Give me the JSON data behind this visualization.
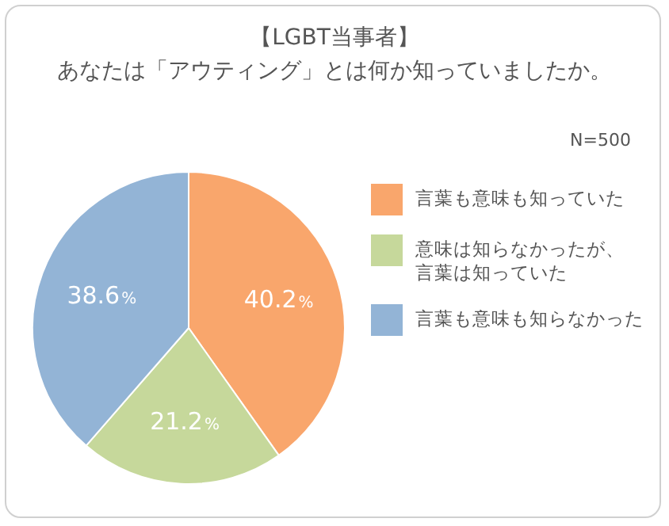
{
  "chart_data": {
    "type": "pie",
    "title": "【LGBT当事者】",
    "subtitle": "あなたは「アウティング」とは何か知っていましたか。",
    "categories": [
      "言葉も意味も知っていた",
      "意味は知らなかったが、言葉は知っていた",
      "言葉も意味も知らなかった"
    ],
    "values": [
      40.2,
      21.2,
      38.6
    ],
    "colors": [
      "#f9a66c",
      "#c6d89b",
      "#93b4d6"
    ],
    "value_labels": [
      "40.2%",
      "21.2%",
      "38.6%"
    ],
    "annotations": [
      "N=500"
    ],
    "legend": "right"
  }
}
